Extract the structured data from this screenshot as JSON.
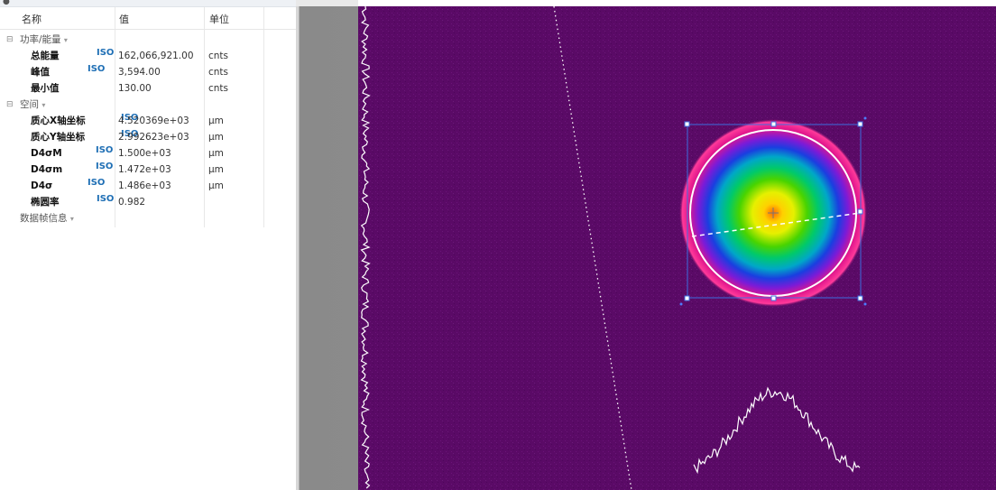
{
  "table": {
    "headers": {
      "name": "名称",
      "value": "值",
      "unit": "单位"
    },
    "rows": [
      {
        "kind": "group",
        "label": "功率/能量"
      },
      {
        "kind": "item",
        "name": "总能量",
        "iso": "ISO",
        "value": "162,066,921.00",
        "unit": "cnts"
      },
      {
        "kind": "item",
        "name": "峰值",
        "iso": "ISO",
        "value": "3,594.00",
        "unit": "cnts"
      },
      {
        "kind": "item",
        "name": "最小值",
        "iso": "",
        "value": "130.00",
        "unit": "cnts"
      },
      {
        "kind": "group",
        "label": "空间"
      },
      {
        "kind": "item",
        "name": "质心X轴坐标",
        "iso": "ISO",
        "value": "4.520369e+03",
        "unit": "μm"
      },
      {
        "kind": "item",
        "name": "质心Y轴坐标",
        "iso": "ISO",
        "value": "2.992623e+03",
        "unit": "μm"
      },
      {
        "kind": "item",
        "name": "D4σM",
        "iso": "ISO",
        "value": "1.500e+03",
        "unit": "μm"
      },
      {
        "kind": "item",
        "name": "D4σm",
        "iso": "ISO",
        "value": "1.472e+03",
        "unit": "μm"
      },
      {
        "kind": "item",
        "name": "D4σ",
        "iso": "ISO",
        "value": "1.486e+03",
        "unit": "μm"
      },
      {
        "kind": "item",
        "name": "椭圆率",
        "iso": "ISO",
        "value": "0.982",
        "unit": ""
      },
      {
        "kind": "footer",
        "label": "数据帧信息"
      }
    ]
  },
  "icons": {
    "expander": "collapse-box-icon",
    "dropdown": "dropdown-caret-icon",
    "panel_grip": "panel-grip-icon"
  },
  "glyphs": {
    "collapse": "⊟",
    "caret": "▾",
    "grip": "●"
  },
  "colors": {
    "viewer_background": "#5a0a66",
    "iso_badge": "#1f6fb5",
    "roi_box": "#3f6fe0",
    "profile_trace": "#ffffff"
  }
}
